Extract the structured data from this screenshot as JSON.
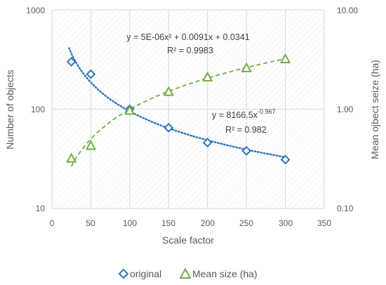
{
  "chart_data": {
    "type": "scatter",
    "x_axis": {
      "label": "Scale factor",
      "min": 0,
      "max": 350,
      "ticks": [
        "0",
        "50",
        "100",
        "150",
        "200",
        "250",
        "300",
        "350"
      ]
    },
    "y_axis_left": {
      "label": "Number of objects",
      "scale": "log",
      "min": 10,
      "max": 1000,
      "ticks": [
        "10",
        "100",
        "1000"
      ]
    },
    "y_axis_right": {
      "label": "Mean ojbect seize (ha)",
      "scale": "log",
      "min": 0.1,
      "max": 10,
      "ticks": [
        "0.10",
        "1.00",
        "10.00"
      ]
    },
    "grid": true,
    "legend_position": "bottom",
    "series": [
      {
        "name": "original",
        "axis": "left",
        "marker": "diamond",
        "color": "#2E75B6",
        "x": [
          25,
          50,
          100,
          150,
          200,
          250,
          300
        ],
        "y": [
          300,
          225,
          100,
          65,
          46,
          38,
          31
        ],
        "trendline": {
          "type": "power",
          "a": 8166.5,
          "b": -0.967,
          "style": "dotted",
          "equation_base": "y = 8166.5x",
          "equation_exp": "-0.967",
          "r2": "R² = 0.982"
        }
      },
      {
        "name": "Mean size (ha)",
        "axis": "right",
        "marker": "triangle",
        "color": "#70AD47",
        "x": [
          25,
          50,
          100,
          150,
          200,
          250,
          300
        ],
        "y": [
          0.32,
          0.43,
          0.97,
          1.5,
          2.1,
          2.6,
          3.2
        ],
        "trendline": {
          "type": "polynomial",
          "coefficients": [
            5e-06,
            0.0091,
            0.0341
          ],
          "style": "dashed",
          "equation": "y = 5E-06x² + 0.0091x + 0.0341",
          "r2": "R² = 0.9983"
        }
      }
    ]
  },
  "colors": {
    "original": "#2E75B6",
    "mean_size": "#70AD47",
    "grid": "#D9D9D9",
    "text": "#595959"
  }
}
